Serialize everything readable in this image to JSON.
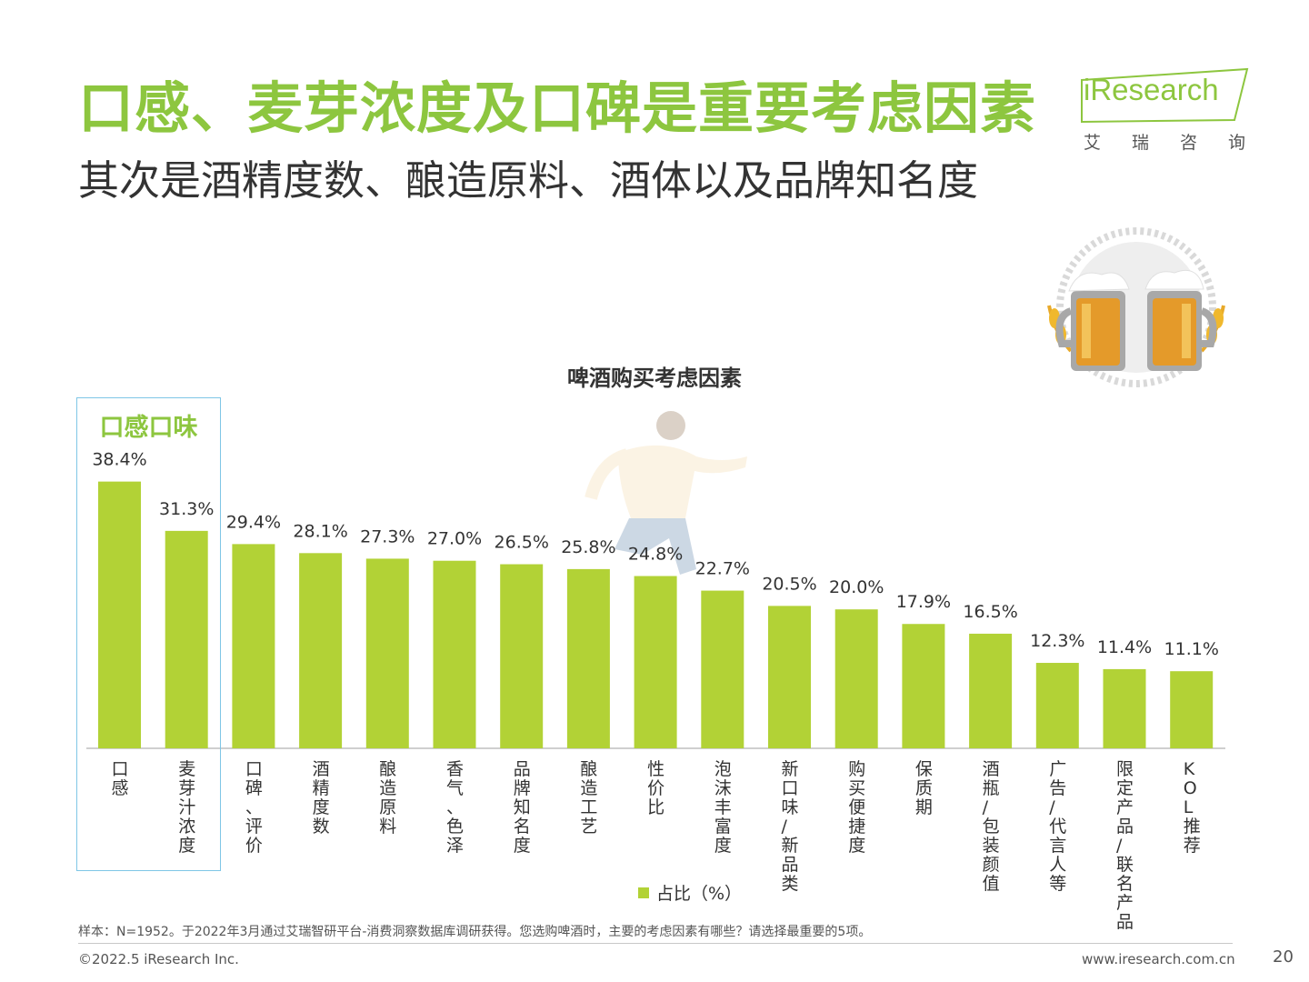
{
  "header": {
    "title": "口感、麦芽浓度及口碑是重要考虑因素",
    "subtitle": "其次是酒精度数、酿造原料、酒体以及品牌知名度"
  },
  "logo": {
    "brand": "iResearch",
    "cn": "艾瑞咨询"
  },
  "chart_data": {
    "type": "bar",
    "title": "啤酒购买考虑因素",
    "categories": [
      "口感",
      "麦芽汁浓度",
      "口碑、评价",
      "酒精度数",
      "酿造原料",
      "香气、色泽",
      "品牌知名度",
      "酿造工艺",
      "性价比",
      "泡沫丰富度",
      "新口味/新品类",
      "购买便捷度",
      "保质期",
      "酒瓶/包装颜值",
      "广告/代言人等",
      "限定产品/联名产品",
      "KOL推荐"
    ],
    "series": [
      {
        "name": "占比（%）",
        "values": [
          38.4,
          31.3,
          29.4,
          28.1,
          27.3,
          27.0,
          26.5,
          25.8,
          24.8,
          22.7,
          20.5,
          20.0,
          17.9,
          16.5,
          12.3,
          11.4,
          11.1
        ]
      }
    ],
    "value_labels": [
      "38.4%",
      "31.3%",
      "29.4%",
      "28.1%",
      "27.3%",
      "27.0%",
      "26.5%",
      "25.8%",
      "24.8%",
      "22.7%",
      "20.5%",
      "20.0%",
      "17.9%",
      "16.5%",
      "12.3%",
      "11.4%",
      "11.1%"
    ],
    "highlight": {
      "label": "口感口味",
      "categories": [
        "口感",
        "麦芽汁浓度"
      ]
    },
    "legend": "bottom",
    "grid": false,
    "color": "#b2d236"
  },
  "footer": {
    "note": "样本：N=1952。于2022年3月通过艾瑞智研平台-消费洞察数据库调研获得。您选购啤酒时，主要的考虑因素有哪些？请选择最重要的5项。",
    "copyright": "©2022.5 iResearch Inc.",
    "website": "www.iresearch.com.cn",
    "page": "20"
  },
  "colors": {
    "accent": "#8dc63f",
    "bar": "#b2d236",
    "highlight_border": "#7fc6e6"
  }
}
